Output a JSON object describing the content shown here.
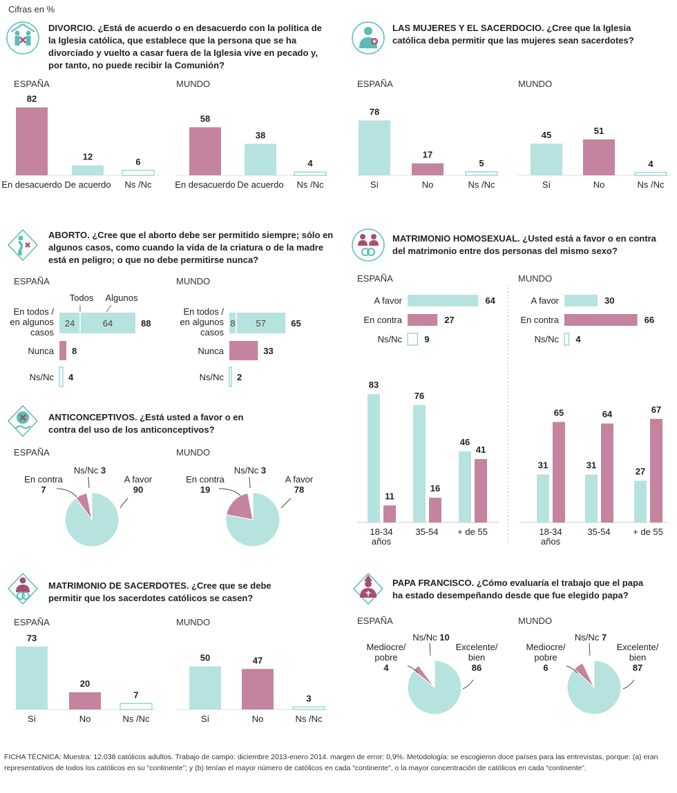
{
  "unit_note": "Cifras en %",
  "colors": {
    "teal": "#b6e3e0",
    "pink": "#c4839e",
    "teal_stroke": "#6fc4c0",
    "pink_dark": "#a64f6f"
  },
  "questions": {
    "divorcio": "DIVORCIO. ¿Está de acuerdo o en desacuerdo con la política de la Iglesia católica, que establece que la persona que se ha divorciado y vuelto a casar fuera de la Iglesia vive en pecado y, por tanto, no puede recibir la Comunión?",
    "mujeres": "LAS MUJERES Y EL SACERDOCIO. ¿Cree que la Iglesia católica deba permitir que las mujeres sean sacerdotes?",
    "aborto": "ABORTO. ¿Cree que el aborto debe ser permitido siempre; sólo en algunos casos, como cuando la vida de la criatura o de la madre está en peligro; o que no debe permitirse nunca?",
    "homosexual": "MATRIMONIO HOMOSEXUAL. ¿Usted está a favor o en contra del matrimonio entre dos personas del mismo sexo?",
    "anticonceptivos": "ANTICONCEPTIVOS. ¿Está usted a favor o en contra del uso de los anticonceptivos?",
    "sacerdotes": "MATRIMONIO DE SACERDOTES. ¿Cree que se debe permitir que los sacerdotes católicos se casen?",
    "papa": "PAPA FRANCISCO. ¿Cómo evaluaría el trabajo que el papa ha estado desempeñando desde que fue elegido papa?"
  },
  "icons": [
    "couple-church-icon",
    "woman-priest-icon",
    "pregnant-crossed-icon",
    "two-people-rings-icon",
    "contraceptive-icon",
    "priest-ring-icon",
    "pope-icon"
  ],
  "chart_data": [
    {
      "id": "divorcio_es",
      "type": "bar",
      "region": "ESPAÑA",
      "categories": [
        "En desacuerdo",
        "De acuerdo",
        "Ns /Nc"
      ],
      "values": [
        82,
        12,
        6
      ],
      "colors": [
        "pink",
        "teal",
        "outline"
      ]
    },
    {
      "id": "divorcio_mu",
      "type": "bar",
      "region": "MUNDO",
      "categories": [
        "En desacuerdo",
        "De acuerdo",
        "Ns /Nc"
      ],
      "values": [
        58,
        38,
        4
      ],
      "colors": [
        "pink",
        "teal",
        "outline"
      ]
    },
    {
      "id": "mujeres_es",
      "type": "bar",
      "region": "ESPAÑA",
      "categories": [
        "Sí",
        "No",
        "Ns /Nc"
      ],
      "values": [
        78,
        17,
        5
      ],
      "colors": [
        "teal",
        "pink",
        "outline"
      ]
    },
    {
      "id": "mujeres_mu",
      "type": "bar",
      "region": "MUNDO",
      "categories": [
        "Sí",
        "No",
        "Ns /Nc"
      ],
      "values": [
        45,
        51,
        4
      ],
      "colors": [
        "teal",
        "pink",
        "outline"
      ]
    },
    {
      "id": "aborto_es",
      "type": "bar",
      "orientation": "horizontal",
      "region": "ESPAÑA",
      "segment_labels": [
        "Todos",
        "Algunos"
      ],
      "rows": [
        {
          "label": "En todos / en algunos casos",
          "segments": [
            24,
            64
          ],
          "total": 88,
          "color": "teal"
        },
        {
          "label": "Nunca",
          "total": 8,
          "color": "pink"
        },
        {
          "label": "Ns/Nc",
          "total": 4,
          "color": "outline"
        }
      ]
    },
    {
      "id": "aborto_mu",
      "type": "bar",
      "orientation": "horizontal",
      "region": "MUNDO",
      "rows": [
        {
          "label": "En todos / en algunos casos",
          "segments": [
            8,
            57
          ],
          "total": 65,
          "color": "teal"
        },
        {
          "label": "Nunca",
          "total": 33,
          "color": "pink"
        },
        {
          "label": "Ns/Nc",
          "total": 2,
          "color": "outline"
        }
      ]
    },
    {
      "id": "homo_es_h",
      "type": "bar",
      "orientation": "horizontal",
      "region": "ESPAÑA",
      "categories": [
        "A favor",
        "En contra",
        "Ns/Nc"
      ],
      "values": [
        64,
        27,
        9
      ],
      "colors": [
        "teal",
        "pink",
        "outline"
      ]
    },
    {
      "id": "homo_mu_h",
      "type": "bar",
      "orientation": "horizontal",
      "region": "MUNDO",
      "categories": [
        "A favor",
        "En contra",
        "Ns/Nc"
      ],
      "values": [
        30,
        66,
        4
      ],
      "colors": [
        "teal",
        "pink",
        "outline"
      ]
    },
    {
      "id": "homo_es_age",
      "type": "bar",
      "categories": [
        "18-34 años",
        "35-54",
        "+ de 55"
      ],
      "series": [
        {
          "color": "teal",
          "values": [
            83,
            76,
            46
          ]
        },
        {
          "color": "pink",
          "values": [
            11,
            16,
            41
          ]
        }
      ]
    },
    {
      "id": "homo_mu_age",
      "type": "bar",
      "categories": [
        "18-34 años",
        "35-54",
        "+ de 55"
      ],
      "series": [
        {
          "color": "teal",
          "values": [
            31,
            31,
            27
          ]
        },
        {
          "color": "pink",
          "values": [
            65,
            64,
            67
          ]
        }
      ]
    },
    {
      "id": "anti_es",
      "type": "pie",
      "region": "ESPAÑA",
      "slices": [
        {
          "label": "A favor",
          "value": 90,
          "color": "teal"
        },
        {
          "label": "En contra",
          "value": 7,
          "color": "pink"
        },
        {
          "label": "Ns/Nc",
          "value": 3,
          "color": "white"
        }
      ]
    },
    {
      "id": "anti_mu",
      "type": "pie",
      "region": "MUNDO",
      "slices": [
        {
          "label": "A favor",
          "value": 78,
          "color": "teal"
        },
        {
          "label": "En contra",
          "value": 19,
          "color": "pink"
        },
        {
          "label": "Ns/Nc",
          "value": 3,
          "color": "white"
        }
      ]
    },
    {
      "id": "sac_es",
      "type": "bar",
      "region": "ESPAÑA",
      "categories": [
        "Sí",
        "No",
        "Ns /Nc"
      ],
      "values": [
        73,
        20,
        7
      ],
      "colors": [
        "teal",
        "pink",
        "outline"
      ]
    },
    {
      "id": "sac_mu",
      "type": "bar",
      "region": "MUNDO",
      "categories": [
        "Sí",
        "No",
        "Ns /Nc"
      ],
      "values": [
        50,
        47,
        3
      ],
      "colors": [
        "teal",
        "pink",
        "outline"
      ]
    },
    {
      "id": "papa_es",
      "type": "pie",
      "region": "ESPAÑA",
      "slices": [
        {
          "label": "Excelente/ bien",
          "value": 86,
          "color": "teal"
        },
        {
          "label": "Mediocre/ pobre",
          "value": 4,
          "color": "pink"
        },
        {
          "label": "Ns/Nc",
          "value": 10,
          "color": "white"
        }
      ]
    },
    {
      "id": "papa_mu",
      "type": "pie",
      "region": "MUNDO",
      "slices": [
        {
          "label": "Excelente/ bien",
          "value": 87,
          "color": "teal"
        },
        {
          "label": "Mediocre/ pobre",
          "value": 6,
          "color": "pink"
        },
        {
          "label": "Ns/Nc",
          "value": 7,
          "color": "white"
        }
      ]
    }
  ],
  "footnote": "FICHA TÉCNICA: Muestra: 12.038 católicos adultos. Trabajo de campo: diciembre 2013-enero 2014. margen de error: 0,9%. Metodología: se escogieron doce países para las entrevistas, porque: (a) eran representativos de todos los católicos en su “continente”; y (b) tenían el mayor número de católicos en cada “continente”, o la mayor concentración de católicos en cada “continente”."
}
